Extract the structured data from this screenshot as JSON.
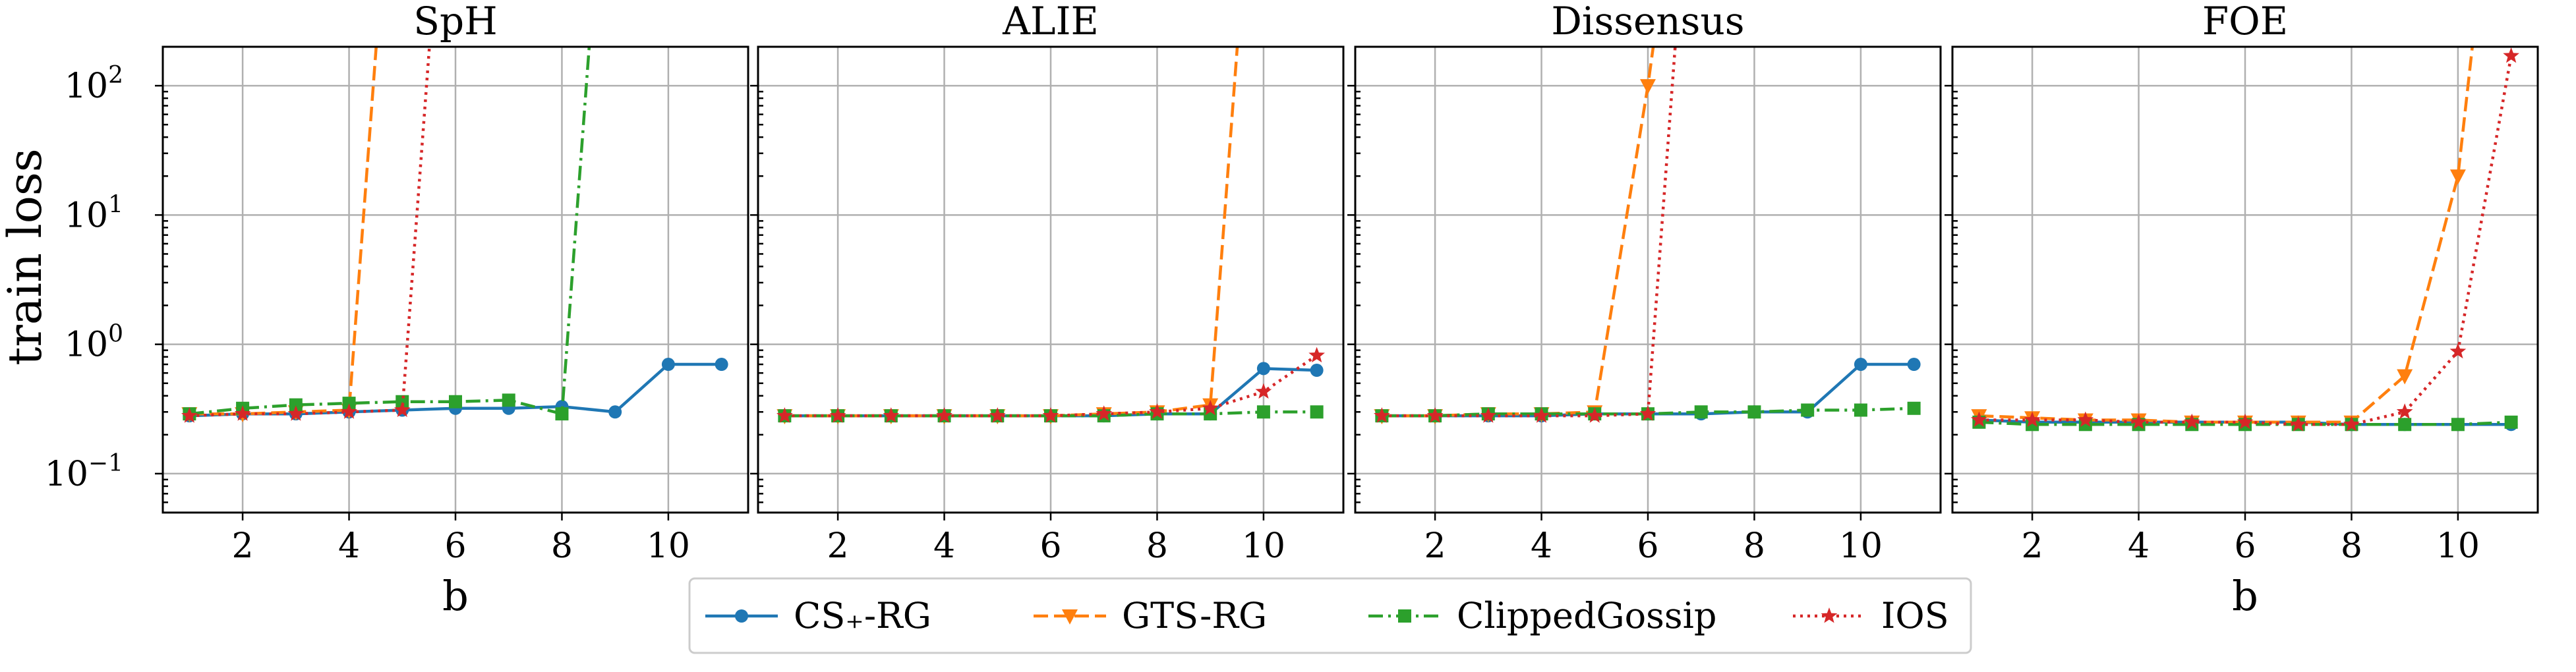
{
  "figure": {
    "ylabel": "train loss",
    "xlabel": "b"
  },
  "chart_data": [
    {
      "type": "line",
      "title": "SpH",
      "xlabel": "b",
      "ylabel": "train loss",
      "yscale": "log",
      "ylim": [
        0.05,
        200
      ],
      "xlim": [
        0.5,
        11.5
      ],
      "xticks": [
        2,
        4,
        6,
        8,
        10
      ],
      "yticks": [
        0.1,
        1,
        10,
        100
      ],
      "grid": true,
      "series": [
        {
          "name": "CS+-RG",
          "x": [
            1,
            2,
            3,
            4,
            5,
            6,
            7,
            8,
            9,
            10,
            11
          ],
          "y": [
            0.28,
            0.29,
            0.29,
            0.3,
            0.31,
            0.32,
            0.32,
            0.33,
            0.3,
            0.7,
            0.7
          ]
        },
        {
          "name": "GTS-RG",
          "x": [
            1,
            2,
            3,
            4,
            5
          ],
          "y": [
            0.29,
            0.29,
            0.3,
            0.31,
            100000
          ]
        },
        {
          "name": "ClippedGossip",
          "x": [
            1,
            2,
            3,
            4,
            5,
            6,
            7,
            8,
            9
          ],
          "y": [
            0.29,
            0.32,
            0.34,
            0.35,
            0.36,
            0.36,
            0.37,
            0.29,
            100000
          ]
        },
        {
          "name": "IOS",
          "x": [
            1,
            2,
            3,
            4,
            5,
            6
          ],
          "y": [
            0.28,
            0.29,
            0.29,
            0.3,
            0.31,
            100000
          ]
        }
      ]
    },
    {
      "type": "line",
      "title": "ALIE",
      "xlabel": "b",
      "yscale": "log",
      "ylim": [
        0.05,
        200
      ],
      "xlim": [
        0.5,
        11.5
      ],
      "xticks": [
        2,
        4,
        6,
        8,
        10
      ],
      "yticks": [
        0.1,
        1,
        10,
        100
      ],
      "grid": true,
      "series": [
        {
          "name": "CS+-RG",
          "x": [
            1,
            2,
            3,
            4,
            5,
            6,
            7,
            8,
            9,
            10,
            11
          ],
          "y": [
            0.28,
            0.28,
            0.28,
            0.28,
            0.28,
            0.28,
            0.28,
            0.29,
            0.29,
            0.65,
            0.63
          ]
        },
        {
          "name": "GTS-RG",
          "x": [
            1,
            2,
            3,
            4,
            5,
            6,
            7,
            8,
            9,
            10
          ],
          "y": [
            0.28,
            0.28,
            0.28,
            0.28,
            0.28,
            0.28,
            0.29,
            0.3,
            0.34,
            100000
          ]
        },
        {
          "name": "ClippedGossip",
          "x": [
            1,
            2,
            3,
            4,
            5,
            6,
            7,
            8,
            9,
            10,
            11
          ],
          "y": [
            0.28,
            0.28,
            0.28,
            0.28,
            0.28,
            0.28,
            0.28,
            0.29,
            0.29,
            0.3,
            0.3
          ]
        },
        {
          "name": "IOS",
          "x": [
            1,
            2,
            3,
            4,
            5,
            6,
            7,
            8,
            9,
            10,
            11
          ],
          "y": [
            0.28,
            0.28,
            0.28,
            0.28,
            0.28,
            0.28,
            0.29,
            0.3,
            0.32,
            0.43,
            0.82
          ]
        }
      ]
    },
    {
      "type": "line",
      "title": "Dissensus",
      "xlabel": "b",
      "yscale": "log",
      "ylim": [
        0.05,
        200
      ],
      "xlim": [
        0.5,
        11.5
      ],
      "xticks": [
        2,
        4,
        6,
        8,
        10
      ],
      "yticks": [
        0.1,
        1,
        10,
        100
      ],
      "grid": true,
      "series": [
        {
          "name": "CS+-RG",
          "x": [
            1,
            2,
            3,
            4,
            5,
            6,
            7,
            8,
            9,
            10,
            11
          ],
          "y": [
            0.28,
            0.28,
            0.28,
            0.28,
            0.29,
            0.29,
            0.29,
            0.3,
            0.3,
            0.7,
            0.7
          ]
        },
        {
          "name": "GTS-RG",
          "x": [
            1,
            2,
            3,
            4,
            5,
            6,
            7
          ],
          "y": [
            0.28,
            0.28,
            0.29,
            0.29,
            0.3,
            100,
            100000
          ]
        },
        {
          "name": "ClippedGossip",
          "x": [
            1,
            2,
            3,
            4,
            5,
            6,
            7,
            8,
            9,
            10,
            11
          ],
          "y": [
            0.28,
            0.28,
            0.29,
            0.29,
            0.29,
            0.29,
            0.3,
            0.3,
            0.31,
            0.31,
            0.32
          ]
        },
        {
          "name": "IOS",
          "x": [
            1,
            2,
            3,
            4,
            5,
            6,
            7
          ],
          "y": [
            0.28,
            0.28,
            0.28,
            0.28,
            0.28,
            0.29,
            100000
          ]
        }
      ]
    },
    {
      "type": "line",
      "title": "FOE",
      "xlabel": "b",
      "yscale": "log",
      "ylim": [
        0.05,
        200
      ],
      "xlim": [
        0.5,
        11.5
      ],
      "xticks": [
        2,
        4,
        6,
        8,
        10
      ],
      "yticks": [
        0.1,
        1,
        10,
        100
      ],
      "grid": true,
      "series": [
        {
          "name": "CS+-RG",
          "x": [
            1,
            2,
            3,
            4,
            5,
            6,
            7,
            8,
            9,
            10,
            11
          ],
          "y": [
            0.26,
            0.25,
            0.25,
            0.25,
            0.25,
            0.25,
            0.25,
            0.24,
            0.24,
            0.24,
            0.24
          ]
        },
        {
          "name": "GTS-RG",
          "x": [
            1,
            2,
            3,
            4,
            5,
            6,
            7,
            8,
            9,
            10,
            11
          ],
          "y": [
            0.28,
            0.27,
            0.26,
            0.26,
            0.25,
            0.25,
            0.25,
            0.25,
            0.57,
            20,
            100000
          ]
        },
        {
          "name": "ClippedGossip",
          "x": [
            1,
            2,
            3,
            4,
            5,
            6,
            7,
            8,
            9,
            10,
            11
          ],
          "y": [
            0.25,
            0.24,
            0.24,
            0.24,
            0.24,
            0.24,
            0.24,
            0.24,
            0.24,
            0.24,
            0.25
          ]
        },
        {
          "name": "IOS",
          "x": [
            1,
            2,
            3,
            4,
            5,
            6,
            7,
            8,
            9,
            10,
            11
          ],
          "y": [
            0.26,
            0.26,
            0.26,
            0.25,
            0.25,
            0.25,
            0.24,
            0.24,
            0.3,
            0.88,
            170
          ]
        }
      ]
    }
  ],
  "legend": {
    "placement": "bottom-center",
    "entries": [
      {
        "label": "CS₊-RG",
        "color": "#1f77b4",
        "dash": "solid",
        "marker": "circle"
      },
      {
        "label": "GTS-RG",
        "color": "#ff7f0e",
        "dash": "dashed",
        "marker": "triangle-down"
      },
      {
        "label": "ClippedGossip",
        "color": "#2ca02c",
        "dash": "dashdot",
        "marker": "square"
      },
      {
        "label": "IOS",
        "color": "#d62728",
        "dash": "dotted",
        "marker": "star"
      }
    ]
  }
}
